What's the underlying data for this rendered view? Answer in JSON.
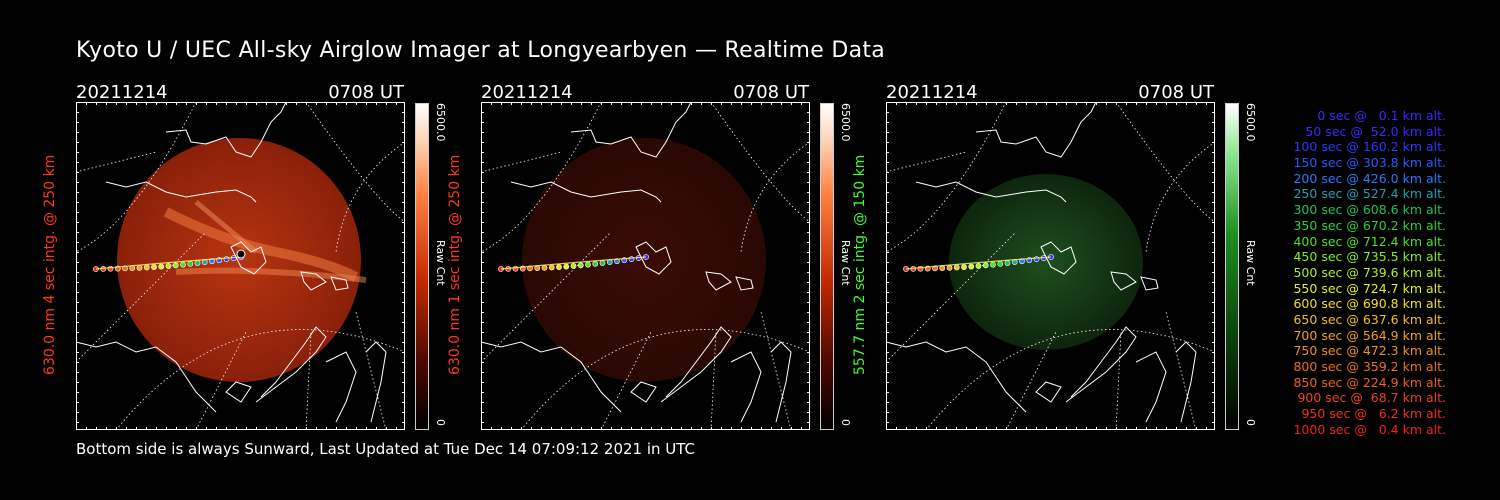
{
  "title": "Kyoto U / UEC All-sky Airglow Imager at Longyearbyen — Realtime Data",
  "footer": "Bottom side is always Sunward, Last Updated at Tue Dec 14 07:09:12 2021 in UTC",
  "panels": [
    {
      "date": "20211214",
      "time": "0708 UT",
      "label": "630.0 nm 4 sec intg. @ 250 km",
      "label_color": "#ff3a1a",
      "cb_max": "6500.0",
      "cb_min": "0",
      "cb_unit": "Raw Cnt",
      "cmap": "red",
      "intensity": 1.0
    },
    {
      "date": "20211214",
      "time": "0708 UT",
      "label": "630.0 nm 1 sec intg. @ 250 km",
      "label_color": "#ff3a1a",
      "cb_max": "6500.0",
      "cb_min": "0",
      "cb_unit": "Raw Cnt",
      "cmap": "red",
      "intensity": 0.28
    },
    {
      "date": "20211214",
      "time": "0708 UT",
      "label": "557.7 nm 2 sec intg. @ 150 km",
      "label_color": "#40ff30",
      "cb_max": "6500.0",
      "cb_min": "0",
      "cb_unit": "Raw Cnt",
      "cmap": "green",
      "intensity": 0.35
    }
  ],
  "legend": [
    {
      "text": "0 sec @   0.1 km alt.",
      "color": "#3a2aff"
    },
    {
      "text": "50 sec @  52.0 km alt.",
      "color": "#3a2aff"
    },
    {
      "text": "100 sec @ 160.2 km alt.",
      "color": "#2a3aff"
    },
    {
      "text": "150 sec @ 303.8 km alt.",
      "color": "#2a5aff"
    },
    {
      "text": "200 sec @ 426.0 km alt.",
      "color": "#2a7aff"
    },
    {
      "text": "250 sec @ 527.4 km alt.",
      "color": "#20a0b0"
    },
    {
      "text": "300 sec @ 608.6 km alt.",
      "color": "#20c060"
    },
    {
      "text": "350 sec @ 670.2 km alt.",
      "color": "#30d030"
    },
    {
      "text": "400 sec @ 712.4 km alt.",
      "color": "#50e020"
    },
    {
      "text": "450 sec @ 735.5 km alt.",
      "color": "#80f020"
    },
    {
      "text": "500 sec @ 739.6 km alt.",
      "color": "#b0f020"
    },
    {
      "text": "550 sec @ 724.7 km alt.",
      "color": "#e0f020"
    },
    {
      "text": "600 sec @ 690.8 km alt.",
      "color": "#f0e020"
    },
    {
      "text": "650 sec @ 637.6 km alt.",
      "color": "#f0c020"
    },
    {
      "text": "700 sec @ 564.9 km alt.",
      "color": "#f0a020"
    },
    {
      "text": "750 sec @ 472.3 km alt.",
      "color": "#f09020"
    },
    {
      "text": "800 sec @ 359.2 km alt.",
      "color": "#f07020"
    },
    {
      "text": "850 sec @ 224.9 km alt.",
      "color": "#f06020"
    },
    {
      "text": "900 sec @  68.7 km alt.",
      "color": "#f04020"
    },
    {
      "text": "950 sec @   6.2 km alt.",
      "color": "#f03020"
    },
    {
      "text": "1000 sec @   0.4 km alt.",
      "color": "#f02020"
    }
  ]
}
